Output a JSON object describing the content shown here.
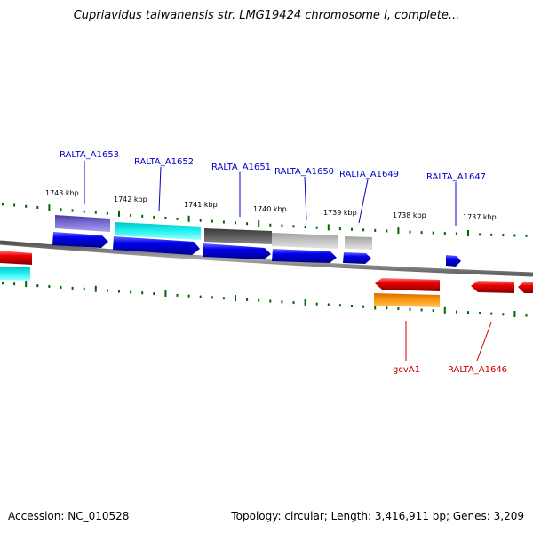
{
  "title": "Cupriavidus taiwanensis str. LMG19424 chromosome I, complete...",
  "footer": {
    "accession": "Accession: NC_010528",
    "stats": "Topology: circular; Length: 3,416,911 bp; Genes: 3,209"
  },
  "scale_labels": [
    "1743 kbp",
    "1742 kbp",
    "1741 kbp",
    "1740 kbp",
    "1739 kbp",
    "1738 kbp",
    "1737 kbp"
  ],
  "gene_labels": [
    {
      "id": "RALTA_A1653",
      "strand": "forward",
      "color": "#0000cc"
    },
    {
      "id": "RALTA_A1652",
      "strand": "forward",
      "color": "#0000cc"
    },
    {
      "id": "RALTA_A1651",
      "strand": "forward",
      "color": "#0000cc"
    },
    {
      "id": "RALTA_A1650",
      "strand": "forward",
      "color": "#0000cc"
    },
    {
      "id": "RALTA_A1649",
      "strand": "forward",
      "color": "#0000cc"
    },
    {
      "id": "RALTA_A1647",
      "strand": "forward",
      "color": "#0000cc"
    },
    {
      "id": "gcvA1",
      "strand": "reverse",
      "color": "#cc0000"
    },
    {
      "id": "RALTA_A1646",
      "strand": "reverse",
      "color": "#cc0000"
    }
  ],
  "colors": {
    "forward_cds": "#0000ee",
    "reverse_cds": "#ee0000",
    "backbone": "#808080",
    "ticks": "#006600",
    "cog_purple": "#6a5acd",
    "cog_cyan": "#00e5e5",
    "cog_darkgray": "#555555",
    "cog_lightgray": "#b8b8b8",
    "cog_orange": "#ff8c00"
  }
}
